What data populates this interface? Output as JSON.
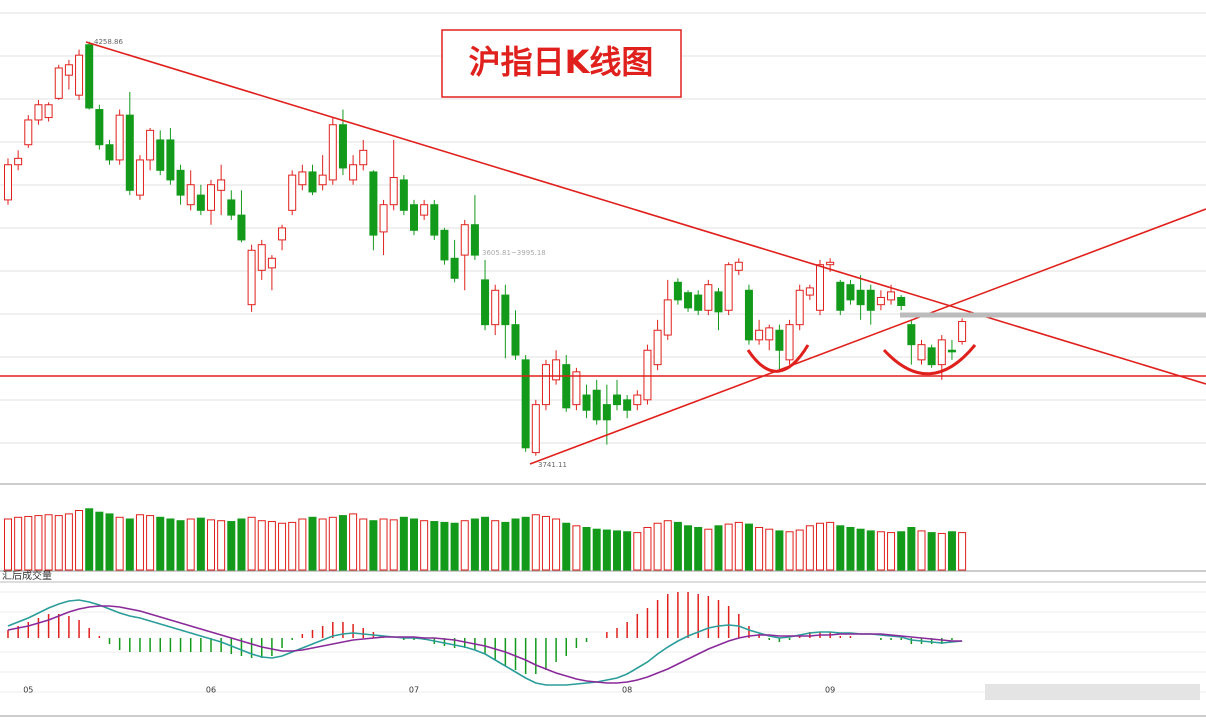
{
  "chart_data": {
    "type": "candlestick",
    "title": "沪指日K线图",
    "annotations": [
      "4258.86",
      "3741.11",
      "3605.81~3995.18"
    ],
    "volume_label": "汇后成交量",
    "up_color": "#e0201c",
    "down_color": "#139a1b",
    "dif_color": "#2a9d9a",
    "dea_color": "#8a2a9a",
    "categories": [
      null,
      null,
      "05",
      null,
      null,
      null,
      null,
      null,
      null,
      null,
      null,
      null,
      null,
      null,
      null,
      null,
      null,
      null,
      null,
      null,
      "06",
      null,
      null,
      null,
      null,
      null,
      null,
      null,
      null,
      null,
      null,
      null,
      null,
      null,
      null,
      null,
      null,
      null,
      null,
      null,
      "07",
      null,
      null,
      null,
      null,
      null,
      null,
      null,
      null,
      null,
      null,
      null,
      null,
      null,
      null,
      null,
      null,
      null,
      null,
      null,
      null,
      "08",
      null,
      null,
      null,
      null,
      null,
      null,
      null,
      null,
      null,
      null,
      null,
      null,
      null,
      null,
      null,
      null,
      null,
      null,
      null,
      "09",
      null,
      null,
      null,
      null,
      null,
      null,
      null,
      null,
      null,
      null,
      null,
      null,
      null
    ],
    "open": [
      4061,
      4105,
      4130,
      4161,
      4164,
      4188,
      4217,
      4192,
      4255,
      4174,
      4130,
      4111,
      4167,
      4067,
      4111,
      4136,
      4136,
      4098,
      4055,
      4067,
      4048,
      4073,
      4061,
      4042,
      3930,
      3973,
      3976,
      4011,
      4048,
      4080,
      4096,
      4080,
      4086,
      4155,
      4086,
      4105,
      4096,
      4021,
      4055,
      4086,
      4055,
      4042,
      4055,
      4023,
      3988,
      3992,
      4030,
      3961,
      3905,
      3942,
      3905,
      3861,
      3745,
      3805,
      3836,
      3855,
      3805,
      3817,
      3823,
      3805,
      3817,
      3811,
      3805,
      3811,
      3855,
      3892,
      3958,
      3945,
      3942,
      3923,
      3946,
      3923,
      3973,
      3948,
      3886,
      3886,
      3898,
      3861,
      3905,
      3942,
      3923,
      3980,
      3958,
      3955,
      3948,
      3948,
      3930,
      3936,
      3939,
      3905,
      3861,
      3876,
      3855,
      3873,
      3884
    ],
    "close": [
      4105,
      4113,
      4161,
      4180,
      4180,
      4226,
      4230,
      4242,
      4176,
      4130,
      4111,
      4167,
      4073,
      4111,
      4148,
      4098,
      4086,
      4067,
      4080,
      4048,
      4080,
      4086,
      4042,
      4011,
      3998,
      4005,
      3988,
      4026,
      4092,
      4096,
      4071,
      4092,
      4155,
      4101,
      4105,
      4123,
      4017,
      4055,
      4089,
      4048,
      4023,
      4055,
      4017,
      3986,
      3963,
      4030,
      3992,
      3905,
      3948,
      3905,
      3867,
      3751,
      3805,
      3855,
      3861,
      3801,
      3846,
      3798,
      3786,
      3786,
      3805,
      3798,
      3817,
      3873,
      3898,
      3936,
      3936,
      3926,
      3923,
      3955,
      3921,
      3980,
      3983,
      3886,
      3898,
      3901,
      3873,
      3905,
      3948,
      3951,
      3980,
      3983,
      3923,
      3936,
      3930,
      3923,
      3939,
      3946,
      3929,
      3880,
      3880,
      3855,
      3886,
      3871,
      3909
    ],
    "high": [
      4113,
      4123,
      4167,
      4186,
      4183,
      4230,
      4236,
      4249,
      4258.86,
      4180,
      4136,
      4174,
      4196,
      4117,
      4151,
      4148,
      4151,
      4105,
      4098,
      4080,
      4086,
      4105,
      4073,
      4073,
      4005,
      4011,
      3992,
      4030,
      4098,
      4105,
      4105,
      4117,
      4164,
      4174,
      4117,
      4136,
      4098,
      4061,
      4136,
      4092,
      4061,
      4061,
      4061,
      4026,
      4011,
      4036,
      4067,
      3986,
      3955,
      3955,
      3923,
      3867,
      3811,
      3861,
      3873,
      3867,
      3851,
      3830,
      3836,
      3830,
      3836,
      3817,
      3823,
      3880,
      3911,
      3961,
      3963,
      3948,
      3948,
      3961,
      3951,
      3983,
      3988,
      3955,
      3911,
      3905,
      3905,
      3911,
      3955,
      3955,
      3986,
      3988,
      3961,
      3961,
      3967,
      3955,
      3948,
      3955,
      3942,
      3911,
      3886,
      3880,
      3892,
      3886,
      3913
    ],
    "low": [
      4055,
      4098,
      4126,
      4155,
      4159,
      4186,
      4199,
      4186,
      4174,
      4124,
      4105,
      4105,
      4067,
      4061,
      4098,
      4092,
      4080,
      4055,
      4048,
      4042,
      4030,
      4042,
      4036,
      4008,
      3921,
      3961,
      3948,
      3998,
      4042,
      4073,
      4067,
      4073,
      4080,
      4092,
      4080,
      4098,
      3998,
      3992,
      4048,
      4042,
      4017,
      4036,
      4011,
      3980,
      3958,
      3948,
      3986,
      3898,
      3892,
      3863,
      3861,
      3746,
      3741.11,
      3798,
      3830,
      3796,
      3798,
      3788,
      3780,
      3755,
      3798,
      3788,
      3798,
      3805,
      3848,
      3886,
      3930,
      3921,
      3917,
      3917,
      3898,
      3917,
      3967,
      3880,
      3880,
      3873,
      3848,
      3855,
      3898,
      3936,
      3917,
      3971,
      3917,
      3930,
      3911,
      3905,
      3923,
      3930,
      3923,
      3855,
      3855,
      3851,
      3836,
      3861,
      3880
    ],
    "ylim": [
      3707,
      4311
    ],
    "volume": [
      60,
      62,
      63,
      64,
      65,
      64,
      66,
      70,
      72,
      68,
      66,
      62,
      60,
      65,
      64,
      62,
      60,
      58,
      60,
      61,
      59,
      58,
      57,
      60,
      62,
      58,
      57,
      55,
      56,
      60,
      62,
      60,
      62,
      64,
      66,
      60,
      58,
      60,
      59,
      62,
      60,
      58,
      57,
      56,
      55,
      58,
      60,
      62,
      58,
      56,
      60,
      62,
      65,
      63,
      60,
      55,
      52,
      50,
      48,
      47,
      46,
      45,
      44,
      50,
      55,
      58,
      56,
      52,
      50,
      48,
      52,
      54,
      56,
      54,
      50,
      48,
      46,
      45,
      47,
      52,
      55,
      56,
      52,
      50,
      48,
      46,
      45,
      44,
      45,
      50,
      46,
      44,
      43,
      45,
      44
    ],
    "volume_lim": [
      0,
      100
    ],
    "dif": [
      12,
      16,
      20,
      25,
      30,
      34,
      37,
      38,
      36,
      33,
      29,
      25,
      22,
      20,
      17,
      14,
      11,
      8,
      5,
      2,
      -1,
      -4,
      -8,
      -12,
      -16,
      -19,
      -20,
      -18,
      -14,
      -10,
      -6,
      -2,
      2,
      4,
      5,
      4,
      3,
      2,
      1,
      0,
      0,
      -1,
      -3,
      -5,
      -7,
      -9,
      -12,
      -16,
      -22,
      -28,
      -34,
      -40,
      -45,
      -47,
      -47,
      -47,
      -46,
      -45,
      -44,
      -42,
      -40,
      -36,
      -30,
      -24,
      -16,
      -9,
      -3,
      2,
      6,
      10,
      12,
      13,
      12,
      8,
      5,
      2,
      0,
      1,
      3,
      5,
      6,
      6,
      5,
      5,
      4,
      4,
      3,
      2,
      1,
      -2,
      -3,
      -4,
      -5,
      -4,
      -3
    ],
    "dea": [
      8,
      10,
      12,
      15,
      18,
      22,
      26,
      29,
      31,
      32,
      32,
      31,
      29,
      27,
      24,
      21,
      18,
      15,
      12,
      9,
      6,
      3,
      0,
      -3,
      -6,
      -9,
      -11,
      -13,
      -13,
      -12,
      -10,
      -8,
      -6,
      -4,
      -2,
      -1,
      0,
      1,
      1,
      1,
      1,
      0,
      0,
      -1,
      -2,
      -4,
      -6,
      -8,
      -11,
      -14,
      -18,
      -22,
      -27,
      -31,
      -35,
      -38,
      -41,
      -43,
      -44,
      -45,
      -45,
      -44,
      -42,
      -39,
      -35,
      -31,
      -26,
      -21,
      -16,
      -11,
      -7,
      -3,
      0,
      2,
      3,
      3,
      2,
      2,
      2,
      2,
      3,
      3,
      4,
      4,
      4,
      4,
      4,
      3,
      2,
      1,
      0,
      -1,
      -2,
      -3,
      -3
    ],
    "macd": [
      8,
      12,
      16,
      20,
      24,
      24,
      22,
      18,
      10,
      2,
      -6,
      -12,
      -14,
      -14,
      -14,
      -14,
      -14,
      -14,
      -14,
      -14,
      -14,
      -14,
      -16,
      -18,
      -20,
      -20,
      -18,
      -10,
      -2,
      4,
      8,
      12,
      16,
      16,
      14,
      10,
      6,
      2,
      0,
      -2,
      -2,
      -2,
      -6,
      -8,
      -10,
      -10,
      -12,
      -16,
      -22,
      -28,
      -32,
      -36,
      -36,
      -32,
      -24,
      -18,
      -10,
      -4,
      0,
      6,
      10,
      16,
      24,
      30,
      38,
      44,
      46,
      46,
      44,
      42,
      38,
      32,
      24,
      12,
      4,
      -2,
      -4,
      -2,
      2,
      6,
      6,
      6,
      2,
      2,
      0,
      0,
      -2,
      -2,
      -2,
      -6,
      -6,
      -6,
      -6,
      -2,
      0
    ],
    "macd_lim": [
      -55,
      55
    ],
    "grid": true
  }
}
